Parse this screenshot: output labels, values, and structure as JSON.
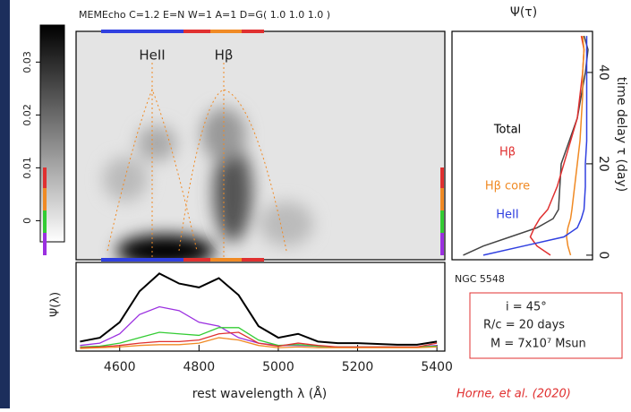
{
  "chart_data": [
    {
      "type": "heatmap",
      "title": "MEMEcho C=1.2 E=N W=1 A=1 D=G( 1.0 1.0 1.0 )",
      "annotations": [
        "HeII",
        "Hβ"
      ],
      "clim": [
        -0.004,
        0.037
      ],
      "cticks": [
        0,
        0.01,
        0.02,
        0.03
      ]
    },
    {
      "type": "line",
      "xlabel": "rest wavelength λ (Å)",
      "ylabel": "Ψ(λ)",
      "x": [
        4500,
        4550,
        4600,
        4650,
        4700,
        4750,
        4800,
        4850,
        4900,
        4950,
        5000,
        5050,
        5100,
        5150,
        5200,
        5250,
        5300,
        5350,
        5400
      ],
      "xlim": [
        4490,
        5420
      ],
      "xticks": [
        4600,
        4800,
        5000,
        5200,
        5400
      ],
      "ylim": [
        0,
        1.1
      ],
      "series": [
        {
          "color": "#000000",
          "values": [
            0.1,
            0.15,
            0.35,
            0.75,
            0.98,
            0.85,
            0.8,
            0.92,
            0.7,
            0.3,
            0.15,
            0.2,
            0.1,
            0.08,
            0.08,
            0.07,
            0.06,
            0.06,
            0.1
          ]
        },
        {
          "color": "#9b30e0",
          "values": [
            0.05,
            0.08,
            0.2,
            0.45,
            0.55,
            0.5,
            0.35,
            0.3,
            0.15,
            0.08,
            0.05,
            0.05,
            0.04,
            0.03,
            0.03,
            0.03,
            0.03,
            0.03,
            0.05
          ]
        },
        {
          "color": "#33cc33",
          "values": [
            0.03,
            0.04,
            0.08,
            0.15,
            0.22,
            0.2,
            0.18,
            0.28,
            0.28,
            0.12,
            0.05,
            0.06,
            0.04,
            0.03,
            0.03,
            0.03,
            0.03,
            0.03,
            0.04
          ]
        },
        {
          "color": "#e03030",
          "values": [
            0.02,
            0.03,
            0.05,
            0.08,
            0.1,
            0.1,
            0.12,
            0.2,
            0.22,
            0.08,
            0.04,
            0.08,
            0.05,
            0.03,
            0.03,
            0.03,
            0.03,
            0.03,
            0.08
          ]
        },
        {
          "color": "#f08a24",
          "values": [
            0.01,
            0.02,
            0.03,
            0.05,
            0.06,
            0.06,
            0.08,
            0.15,
            0.12,
            0.05,
            0.02,
            0.03,
            0.02,
            0.02,
            0.02,
            0.02,
            0.02,
            0.02,
            0.03
          ]
        }
      ]
    },
    {
      "type": "line",
      "title": "Ψ(τ)",
      "xlabel": "time delay τ (day)",
      "x": [
        0,
        2,
        4,
        6,
        8,
        10,
        15,
        20,
        25,
        30,
        35,
        40,
        45,
        48
      ],
      "xlim": [
        -1,
        49
      ],
      "xticks": [
        0,
        20,
        40
      ],
      "ylim": [
        0,
        1
      ],
      "series": [
        {
          "name": "Total",
          "color": "#444444",
          "values": [
            0.05,
            0.2,
            0.4,
            0.6,
            0.72,
            0.76,
            0.77,
            0.78,
            0.84,
            0.9,
            0.93,
            0.96,
            0.98,
            0.95
          ]
        },
        {
          "name": "Hβ",
          "color": "#e03030",
          "values": [
            0.7,
            0.6,
            0.55,
            0.58,
            0.62,
            0.68,
            0.75,
            0.8,
            0.85,
            0.9,
            0.92,
            0.94,
            0.95,
            0.93
          ]
        },
        {
          "name": "Hβ core",
          "color": "#f08a24",
          "values": [
            0.85,
            0.83,
            0.82,
            0.83,
            0.85,
            0.86,
            0.88,
            0.9,
            0.92,
            0.93,
            0.94,
            0.94,
            0.95,
            0.94
          ]
        },
        {
          "name": "HeII",
          "color": "#3040e0",
          "values": [
            0.2,
            0.5,
            0.8,
            0.9,
            0.93,
            0.95,
            0.96,
            0.96,
            0.97,
            0.97,
            0.97,
            0.97,
            0.97,
            0.97
          ]
        }
      ]
    }
  ],
  "notes": {
    "object": "NGC 5548",
    "parameters": [
      "i = 45°",
      "R/c = 20 days",
      "M = 7x10⁷ Msun"
    ],
    "source": "Horne, et al. (2020)"
  }
}
